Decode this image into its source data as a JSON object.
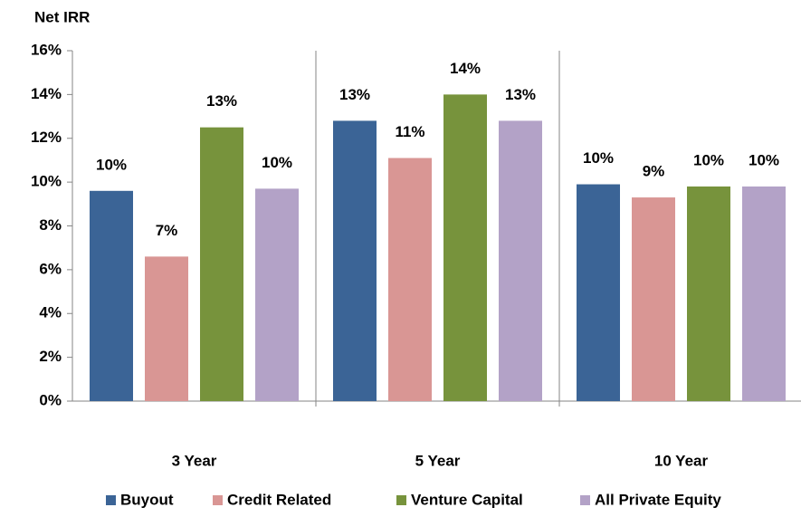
{
  "chart_data": {
    "type": "bar",
    "y_label": "Net IRR",
    "categories": [
      "3 Year",
      "5 Year",
      "10 Year"
    ],
    "series": [
      {
        "name": "Buyout",
        "color": "#3b6496",
        "values": [
          9.6,
          12.8,
          9.9
        ],
        "value_labels": [
          "10%",
          "13%",
          "10%"
        ]
      },
      {
        "name": "Credit Related",
        "color": "#d99694",
        "values": [
          6.6,
          11.1,
          9.3
        ],
        "value_labels": [
          "7%",
          "11%",
          "9%"
        ]
      },
      {
        "name": "Venture Capital",
        "color": "#77933c",
        "values": [
          12.5,
          14.0,
          9.8
        ],
        "value_labels": [
          "13%",
          "14%",
          "10%"
        ]
      },
      {
        "name": "All Private Equity",
        "color": "#b3a2c7",
        "values": [
          9.7,
          12.8,
          9.8
        ],
        "value_labels": [
          "10%",
          "13%",
          "10%"
        ]
      }
    ],
    "ylim": [
      0,
      16
    ],
    "yticks": [
      {
        "value": 0,
        "label": "0%"
      },
      {
        "value": 2,
        "label": "2%"
      },
      {
        "value": 4,
        "label": "4%"
      },
      {
        "value": 6,
        "label": "6%"
      },
      {
        "value": 8,
        "label": "8%"
      },
      {
        "value": 10,
        "label": "10%"
      },
      {
        "value": 12,
        "label": "12%"
      },
      {
        "value": 14,
        "label": "14%"
      },
      {
        "value": 16,
        "label": "16%"
      }
    ],
    "grid": false,
    "legend": "bottom"
  }
}
